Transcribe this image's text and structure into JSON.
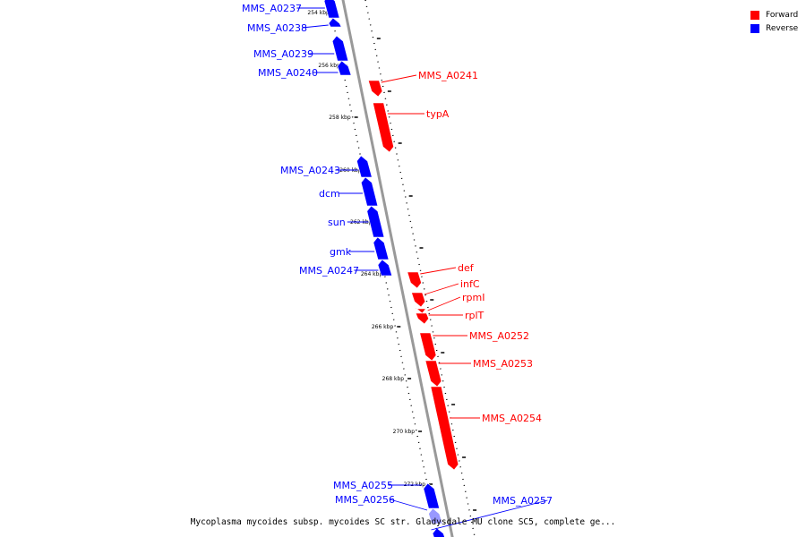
{
  "caption": "Mycoplasma mycoides subsp. mycoides SC str. Gladysdale MU clone SC5, complete ge...",
  "legend": [
    {
      "label": "Forward",
      "color": "#ff0000"
    },
    {
      "label": "Reverse",
      "color": "#0000ff"
    }
  ],
  "colors": {
    "forward": "#ff0000",
    "reverse": "#0000ff",
    "reverse_faint": "#9999ff",
    "backbone": "#999999"
  },
  "ticks": [
    "254 kbp",
    "256 kbp",
    "258 kbp",
    "260 kbp",
    "262 kbp",
    "264 kbp",
    "266 kbp",
    "268 kbp",
    "270 kbp",
    "272 kbp"
  ],
  "genes": [
    {
      "name": "MMS_A0237",
      "strand": "reverse"
    },
    {
      "name": "MMS_A0238",
      "strand": "reverse"
    },
    {
      "name": "MMS_A0239",
      "strand": "reverse"
    },
    {
      "name": "MMS_A0240",
      "strand": "reverse"
    },
    {
      "name": "MMS_A0241",
      "strand": "forward"
    },
    {
      "name": "typA",
      "strand": "forward"
    },
    {
      "name": "MMS_A0243",
      "strand": "reverse"
    },
    {
      "name": "dcm",
      "strand": "reverse"
    },
    {
      "name": "sun",
      "strand": "reverse"
    },
    {
      "name": "gmk",
      "strand": "reverse"
    },
    {
      "name": "MMS_A0247",
      "strand": "reverse"
    },
    {
      "name": "def",
      "strand": "forward"
    },
    {
      "name": "infC",
      "strand": "forward"
    },
    {
      "name": "rpmI",
      "strand": "forward"
    },
    {
      "name": "rplT",
      "strand": "forward"
    },
    {
      "name": "MMS_A0252",
      "strand": "forward"
    },
    {
      "name": "MMS_A0253",
      "strand": "forward"
    },
    {
      "name": "MMS_A0254",
      "strand": "forward"
    },
    {
      "name": "MMS_A0255",
      "strand": "reverse"
    },
    {
      "name": "MMS_A0256",
      "strand": "reverse"
    },
    {
      "name": "MMS_A0257",
      "strand": "reverse"
    }
  ]
}
